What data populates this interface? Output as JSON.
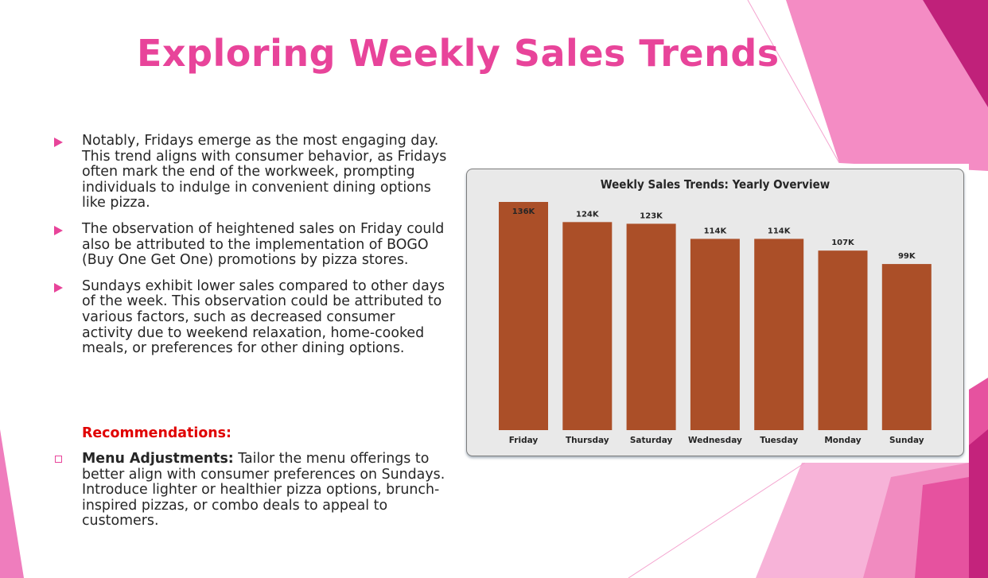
{
  "slide": {
    "title": "Exploring Weekly Sales Trends",
    "bullets": [
      "Notably, Fridays emerge as the most engaging day. This trend aligns with consumer behavior, as Fridays often mark the end of the workweek, prompting individuals to indulge in convenient dining options like pizza.",
      "The observation of heightened sales on Friday could also be attributed to the implementation of BOGO (Buy One Get One) promotions by pizza stores.",
      "Sundays exhibit lower sales compared to other days of the week. This observation could be attributed to various factors, such as decreased consumer activity due to weekend relaxation, home-cooked meals, or preferences for other dining options."
    ],
    "recommendations_heading": "Recommendations:",
    "recommendation": {
      "term": "Menu Adjustments:",
      "text": " Tailor the menu offerings to better align with consumer preferences on Sundays. Introduce lighter or healthier pizza options, brunch-inspired pizzas, or combo deals to appeal to customers."
    }
  },
  "colors": {
    "accent_pink": "#e8449a",
    "recommendation_red": "#e00000",
    "bar_color": "#ab4f28",
    "chart_background": "#e9e9e9"
  },
  "icons": {
    "bullet": "play-arrow-icon",
    "recommendation": "hollow-square-icon"
  },
  "chart_data": {
    "type": "bar",
    "title": "Weekly Sales Trends: Yearly Overview",
    "categories": [
      "Friday",
      "Thursday",
      "Saturday",
      "Wednesday",
      "Tuesday",
      "Monday",
      "Sunday"
    ],
    "values": [
      136,
      124,
      123,
      114,
      114,
      107,
      99
    ],
    "data_labels": [
      "136K",
      "124K",
      "123K",
      "114K",
      "114K",
      "107K",
      "99K"
    ],
    "unit": "K",
    "ylim": [
      0,
      136
    ],
    "xlabel": "",
    "ylabel": "",
    "grid": false,
    "legend": "none",
    "color": "#ab4f28"
  }
}
